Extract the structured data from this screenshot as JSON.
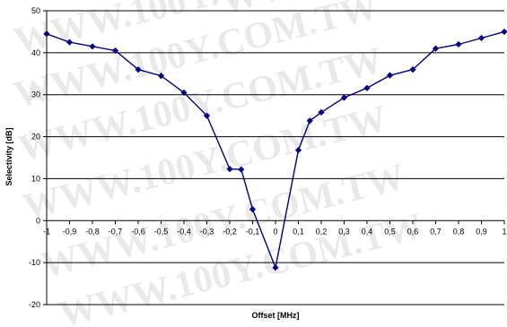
{
  "chart_data": {
    "type": "line",
    "title": "",
    "xlabel": "Offset [MHz]",
    "ylabel": "Selectivity [dB]",
    "xlim": [
      -1,
      1
    ],
    "ylim": [
      -20,
      50
    ],
    "grid": "horizontal",
    "legend": "none",
    "x_ticks": [
      "-1",
      "-0,9",
      "-0,8",
      "-0,7",
      "-0,6",
      "-0,5",
      "-0,4",
      "-0,3",
      "-0,2",
      "-0,1",
      "0",
      "0,1",
      "0,2",
      "0,3",
      "0,4",
      "0,5",
      "0,6",
      "0,7",
      "0,8",
      "0,9",
      "1"
    ],
    "y_ticks": [
      "-20",
      "-10",
      "0",
      "10",
      "20",
      "30",
      "40",
      "50"
    ],
    "series": [
      {
        "color": "#000080",
        "marker": "diamond",
        "points": [
          [
            -1.0,
            44.5
          ],
          [
            -0.9,
            42.5
          ],
          [
            -0.8,
            41.5
          ],
          [
            -0.7,
            40.5
          ],
          [
            -0.6,
            36.0
          ],
          [
            -0.5,
            34.5
          ],
          [
            -0.4,
            30.5
          ],
          [
            -0.3,
            25.0
          ],
          [
            -0.2,
            12.3
          ],
          [
            -0.15,
            12.2
          ],
          [
            -0.1,
            2.7
          ],
          [
            0.0,
            -11.2
          ],
          [
            0.1,
            16.8
          ],
          [
            0.15,
            23.8
          ],
          [
            0.2,
            25.8
          ],
          [
            0.3,
            29.3
          ],
          [
            0.4,
            31.6
          ],
          [
            0.5,
            34.6
          ],
          [
            0.6,
            36.0
          ],
          [
            0.7,
            41.0
          ],
          [
            0.8,
            42.0
          ],
          [
            0.9,
            43.5
          ],
          [
            1.0,
            45.0
          ]
        ]
      }
    ]
  },
  "watermark": {
    "text": "WWW.100Y.COM.TW",
    "color": "#c8c8c8"
  }
}
